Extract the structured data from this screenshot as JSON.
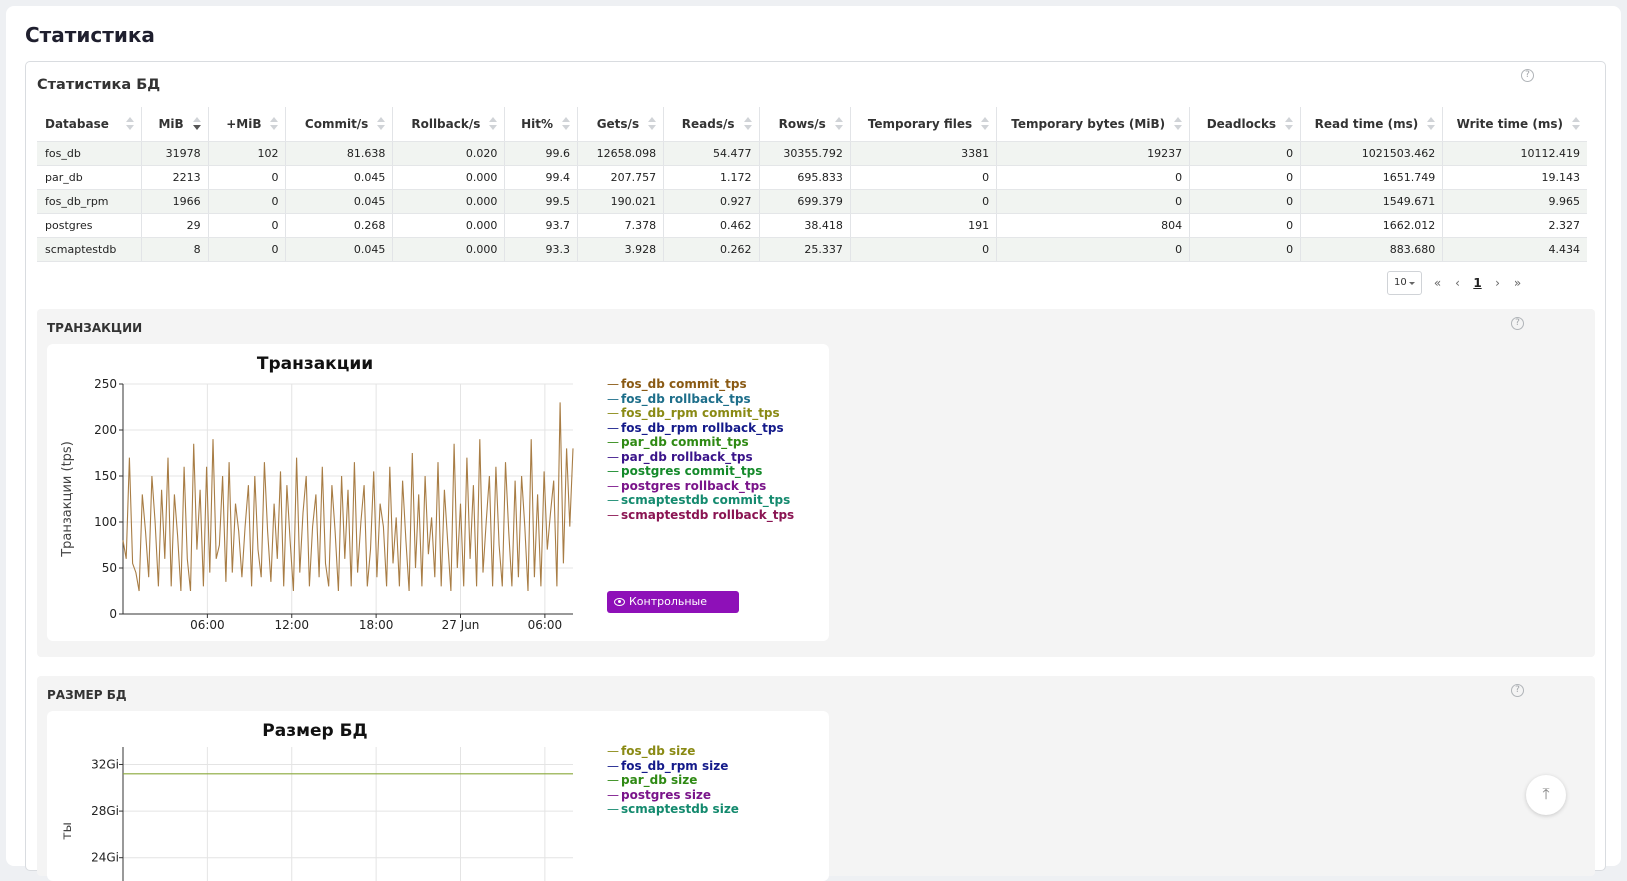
{
  "page": {
    "title": "Статистика"
  },
  "db_stats": {
    "title": "Статистика БД",
    "columns": [
      "Database",
      "MiB",
      "+MiB",
      "Commit/s",
      "Rollback/s",
      "Hit%",
      "Gets/s",
      "Reads/s",
      "Rows/s",
      "Temporary files",
      "Temporary bytes (MiB)",
      "Deadlocks",
      "Read time (ms)",
      "Write time (ms)"
    ],
    "sorted_column": "MiB",
    "rows": [
      [
        "fos_db",
        "31978",
        "102",
        "81.638",
        "0.020",
        "99.6",
        "12658.098",
        "54.477",
        "30355.792",
        "3381",
        "19237",
        "0",
        "1021503.462",
        "10112.419"
      ],
      [
        "par_db",
        "2213",
        "0",
        "0.045",
        "0.000",
        "99.4",
        "207.757",
        "1.172",
        "695.833",
        "0",
        "0",
        "0",
        "1651.749",
        "19.143"
      ],
      [
        "fos_db_rpm",
        "1966",
        "0",
        "0.045",
        "0.000",
        "99.5",
        "190.021",
        "0.927",
        "699.379",
        "0",
        "0",
        "0",
        "1549.671",
        "9.965"
      ],
      [
        "postgres",
        "29",
        "0",
        "0.268",
        "0.000",
        "93.7",
        "7.378",
        "0.462",
        "38.418",
        "191",
        "804",
        "0",
        "1662.012",
        "2.327"
      ],
      [
        "scmaptestdb",
        "8",
        "0",
        "0.045",
        "0.000",
        "93.3",
        "3.928",
        "0.262",
        "25.337",
        "0",
        "0",
        "0",
        "883.680",
        "4.434"
      ]
    ],
    "pager": {
      "page_size": "10",
      "first": "«",
      "prev": "‹",
      "current": "1",
      "next": "›",
      "last": "»"
    }
  },
  "transactions": {
    "section_title": "Транзакции",
    "checkpoints_button": "Контрольные точки",
    "chart_data": {
      "type": "line",
      "title": "Транзакции",
      "ylabel": "Транзакции (tps)",
      "ylim": [
        0,
        250
      ],
      "yticks": [
        "0",
        "50",
        "100",
        "150",
        "200",
        "250"
      ],
      "xticks": [
        "06:00",
        "12:00",
        "18:00",
        "27 Jun",
        "06:00"
      ],
      "x_range_hours": [
        0,
        32
      ],
      "legend": [
        {
          "name": "fos_db commit_tps",
          "color": "#8a5a14"
        },
        {
          "name": "fos_db rollback_tps",
          "color": "#1d6e8a"
        },
        {
          "name": "fos_db_rpm commit_tps",
          "color": "#8a8a14"
        },
        {
          "name": "fos_db_rpm rollback_tps",
          "color": "#141a8a"
        },
        {
          "name": "par_db commit_tps",
          "color": "#2f8a14"
        },
        {
          "name": "par_db rollback_tps",
          "color": "#3a148a"
        },
        {
          "name": "postgres commit_tps",
          "color": "#148a2a"
        },
        {
          "name": "postgres rollback_tps",
          "color": "#7a148a"
        },
        {
          "name": "scmaptestdb commit_tps",
          "color": "#148a6e"
        },
        {
          "name": "scmaptestdb rollback_tps",
          "color": "#8a1452"
        }
      ],
      "series": [
        {
          "name": "fos_db commit_tps",
          "color": "#a87d45",
          "values": [
            80,
            60,
            170,
            55,
            45,
            25,
            130,
            90,
            40,
            150,
            100,
            30,
            135,
            60,
            170,
            30,
            130,
            85,
            25,
            160,
            60,
            25,
            185,
            70,
            135,
            30,
            160,
            45,
            190,
            60,
            75,
            150,
            35,
            165,
            45,
            120,
            90,
            40,
            95,
            140,
            30,
            150,
            70,
            40,
            165,
            90,
            35,
            120,
            60,
            155,
            30,
            140,
            80,
            25,
            170,
            45,
            110,
            150,
            30,
            95,
            130,
            40,
            160,
            55,
            30,
            140,
            90,
            25,
            150,
            60,
            135,
            30,
            165,
            45,
            100,
            140,
            30,
            70,
            155,
            40,
            120,
            95,
            30,
            160,
            55,
            105,
            30,
            145,
            80,
            25,
            175,
            50,
            130,
            30,
            150,
            65,
            105,
            40,
            165,
            30,
            135,
            80,
            25,
            185,
            50,
            120,
            30,
            170,
            60,
            140,
            30,
            190,
            45,
            100,
            150,
            30,
            160,
            75,
            30,
            165,
            90,
            30,
            145,
            40,
            150,
            95,
            25,
            190,
            40,
            130,
            30,
            155,
            70,
            110,
            145,
            30,
            230,
            55,
            180,
            95,
            180
          ]
        }
      ]
    }
  },
  "db_size": {
    "section_title": "Размер БД",
    "chart_data": {
      "type": "line",
      "title": "Размер БД",
      "ylabel": "ты",
      "ylim": [
        22,
        33.5
      ],
      "yticks": [
        "32Gi",
        "28Gi",
        "24Gi"
      ],
      "legend": [
        {
          "name": "fos_db size",
          "color": "#8a8a14"
        },
        {
          "name": "fos_db_rpm size",
          "color": "#141a8a"
        },
        {
          "name": "par_db size",
          "color": "#2f8a14"
        },
        {
          "name": "postgres size",
          "color": "#7a148a"
        },
        {
          "name": "scmaptestdb size",
          "color": "#148a6e"
        }
      ],
      "series": [
        {
          "name": "fos_db size",
          "color": "#8aa83a",
          "values": [
            31.2,
            31.2
          ]
        }
      ]
    }
  }
}
